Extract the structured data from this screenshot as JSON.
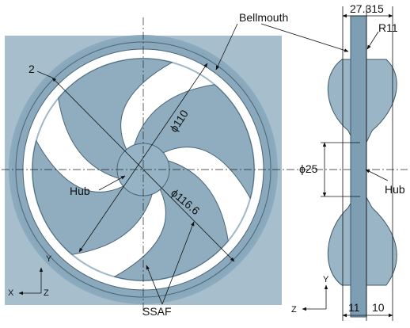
{
  "front_view": {
    "dims": [
      "2",
      "ϕ110",
      "ϕ116.6"
    ],
    "hub_label": "Hub",
    "blade_label": "SSAF",
    "axes": [
      "Y",
      "X",
      "Z"
    ]
  },
  "side_view": {
    "bellmouth_label": "Bellmouth",
    "dims": [
      "27.315",
      "R11",
      "ϕ25",
      "11",
      "10"
    ],
    "hub_label": "Hub",
    "axes": [
      "Y",
      "Z"
    ]
  }
}
